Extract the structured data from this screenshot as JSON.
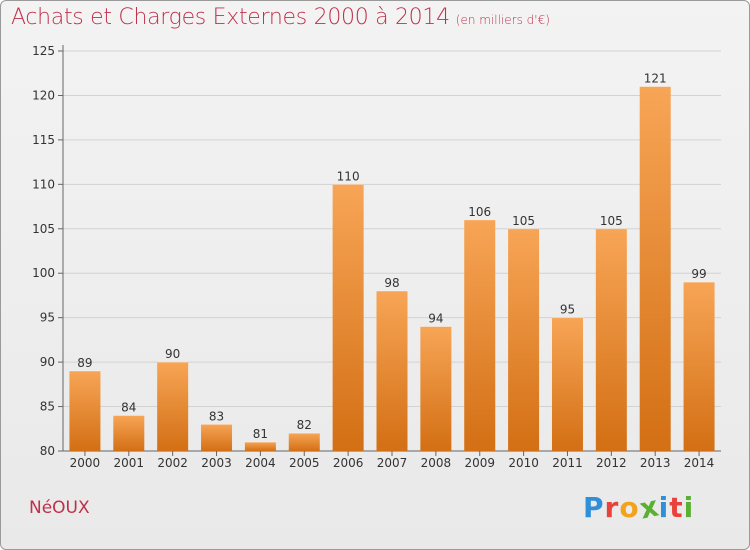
{
  "header": {
    "title": "Achats et Charges Externes 2000 à 2014",
    "subtitle": "(en milliers d'€)"
  },
  "footer": {
    "city": "NéOUX",
    "brand": "Proxiti"
  },
  "colors": {
    "title": "#c0304a",
    "bar_light": "#f7a556",
    "bar_dark": "#d36f14",
    "brand_letters": [
      "#2f8fd8",
      "#e8423a",
      "#f2a21b",
      "#5ab031",
      "#2f8fd8",
      "#e8423a",
      "#5ab031"
    ]
  },
  "chart_data": {
    "type": "bar",
    "categories": [
      "2000",
      "2001",
      "2002",
      "2003",
      "2004",
      "2005",
      "2006",
      "2007",
      "2008",
      "2009",
      "2010",
      "2011",
      "2012",
      "2013",
      "2014"
    ],
    "values": [
      89,
      84,
      90,
      83,
      81,
      82,
      110,
      98,
      94,
      106,
      105,
      95,
      105,
      121,
      99
    ],
    "title": "Achats et Charges Externes 2000 à 2014",
    "subtitle": "(en milliers d'€)",
    "xlabel": "",
    "ylabel": "",
    "ylim": [
      80,
      125
    ],
    "yticks": [
      80,
      85,
      90,
      95,
      100,
      105,
      110,
      115,
      120,
      125
    ],
    "grid": true,
    "legend": "none"
  }
}
